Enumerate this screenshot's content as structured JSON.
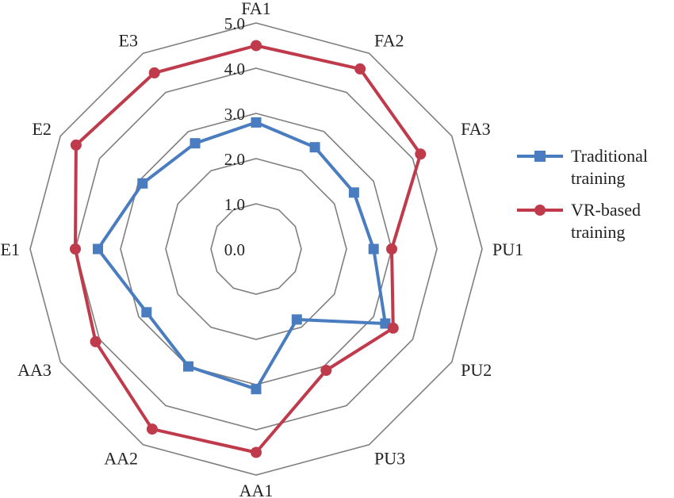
{
  "chart_data": {
    "type": "radar",
    "categories": [
      "FA1",
      "FA2",
      "FA3",
      "PU1",
      "PU2",
      "PU3",
      "AA1",
      "AA2",
      "AA3",
      "E1",
      "E2",
      "E3"
    ],
    "r_ticks": [
      "0.0",
      "1.0",
      "2.0",
      "3.0",
      "4.0",
      "5.0"
    ],
    "rlim": [
      0,
      5
    ],
    "grid": true,
    "legend_position": "right",
    "series": [
      {
        "name": "Traditional training",
        "legend_lines": [
          "Traditional",
          "training"
        ],
        "color": "#4a7cc0",
        "marker": "square",
        "values": [
          2.8,
          2.6,
          2.5,
          2.6,
          3.3,
          1.8,
          3.1,
          3.0,
          2.8,
          3.5,
          2.9,
          2.7
        ]
      },
      {
        "name": "VR-based training",
        "legend_lines": [
          "VR-based",
          "training"
        ],
        "color": "#bf3a4b",
        "marker": "circle",
        "values": [
          4.5,
          4.6,
          4.2,
          3.0,
          3.5,
          3.1,
          4.5,
          4.6,
          4.1,
          4.0,
          4.6,
          4.5
        ]
      }
    ]
  }
}
